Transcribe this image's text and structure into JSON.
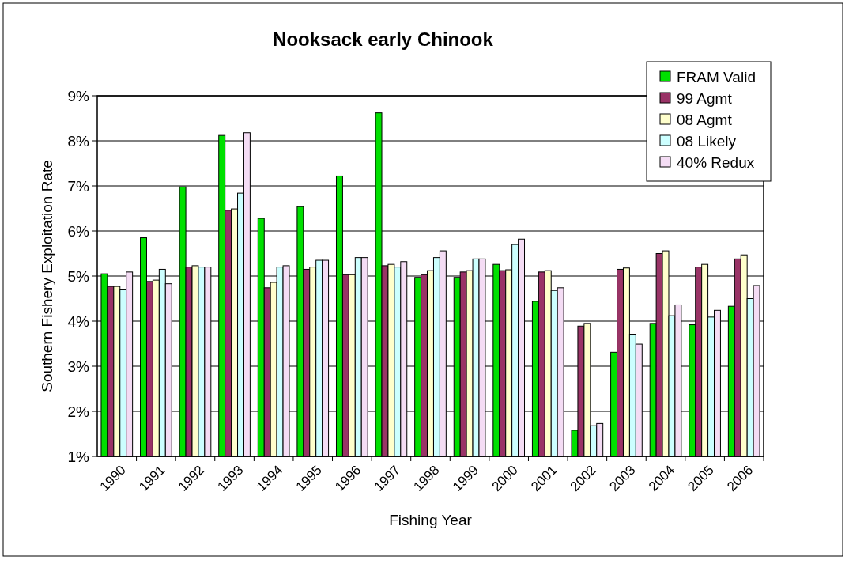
{
  "chart_data": {
    "type": "bar",
    "title": "Nooksack early Chinook",
    "xlabel": "Fishing Year",
    "ylabel": "Southern Fishery Exploitation Rate",
    "categories": [
      "1990",
      "1991",
      "1992",
      "1993",
      "1994",
      "1995",
      "1996",
      "1997",
      "1998",
      "1999",
      "2000",
      "2001",
      "2002",
      "2003",
      "2004",
      "2005",
      "2006"
    ],
    "series": [
      {
        "name": "FRAM Valid",
        "color": "#00e000",
        "values": [
          5.05,
          5.85,
          6.98,
          8.12,
          6.28,
          6.54,
          7.22,
          8.62,
          4.97,
          4.97,
          5.26,
          4.44,
          1.58,
          3.31,
          3.95,
          3.92,
          4.33
        ]
      },
      {
        "name": "99 Agmt",
        "color": "#993366",
        "values": [
          4.77,
          4.88,
          5.2,
          6.46,
          4.74,
          5.15,
          5.03,
          5.23,
          5.03,
          5.09,
          5.12,
          5.09,
          3.89,
          5.15,
          5.5,
          5.2,
          5.38
        ]
      },
      {
        "name": "08 Agmt",
        "color": "#ffffcc",
        "values": [
          4.77,
          4.91,
          5.23,
          6.49,
          4.86,
          5.2,
          5.03,
          5.26,
          5.12,
          5.12,
          5.14,
          5.12,
          3.95,
          5.18,
          5.56,
          5.26,
          5.47
        ]
      },
      {
        "name": "08 Likely",
        "color": "#ccffff",
        "values": [
          4.71,
          5.15,
          5.2,
          6.84,
          5.2,
          5.35,
          5.41,
          5.2,
          5.41,
          5.38,
          5.7,
          4.68,
          1.68,
          3.71,
          4.12,
          4.09,
          4.5
        ]
      },
      {
        "name": "40% Redux",
        "color": "#f4dcf4",
        "values": [
          5.09,
          4.83,
          5.2,
          8.18,
          5.23,
          5.35,
          5.41,
          5.32,
          5.56,
          5.38,
          5.82,
          4.74,
          1.73,
          3.49,
          4.36,
          4.24,
          4.79
        ]
      }
    ],
    "ylim": [
      1,
      9
    ],
    "yticks": [
      {
        "value": 1,
        "label": "1%"
      },
      {
        "value": 2,
        "label": "2%"
      },
      {
        "value": 3,
        "label": "3%"
      },
      {
        "value": 4,
        "label": "4%"
      },
      {
        "value": 5,
        "label": "5%"
      },
      {
        "value": 6,
        "label": "6%"
      },
      {
        "value": 7,
        "label": "7%"
      },
      {
        "value": 8,
        "label": "8%"
      },
      {
        "value": 9,
        "label": "9%"
      }
    ],
    "grid": "y",
    "legend": "top right"
  }
}
